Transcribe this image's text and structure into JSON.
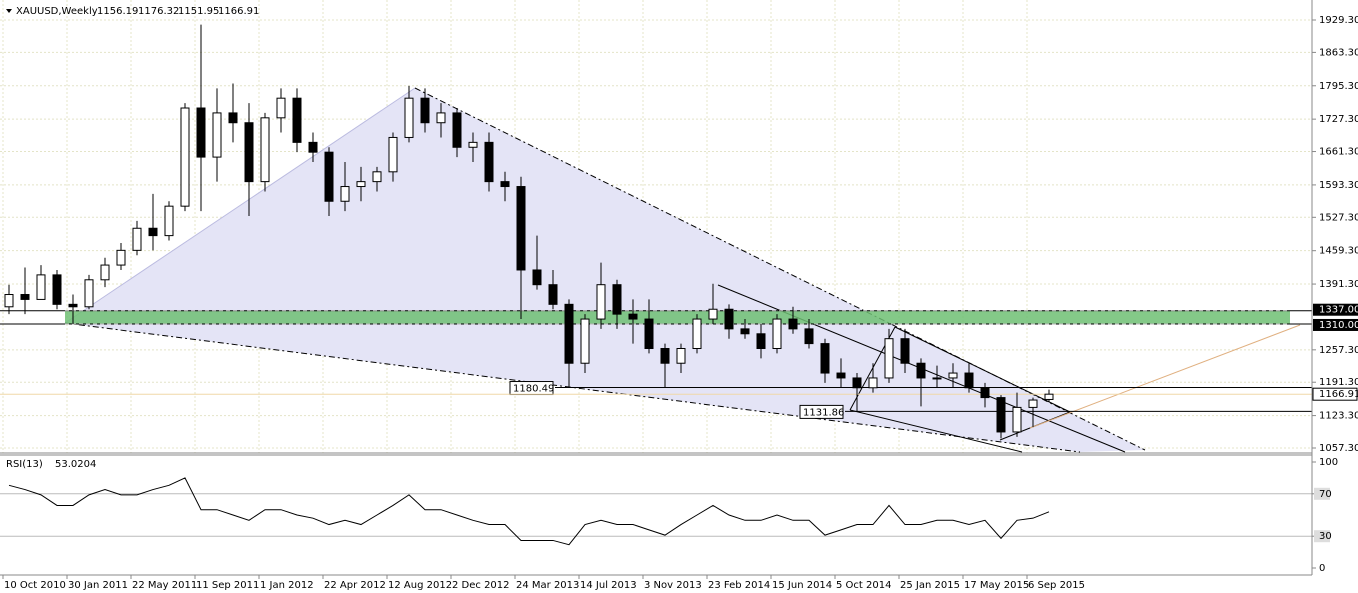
{
  "chart_data": {
    "type": "candlestick",
    "symbol": "XAUUSD,Weekly",
    "up_color": "#ffffff",
    "down_color": "#000000",
    "grid": true,
    "xlim": [
      -0.75,
      327.25
    ],
    "xticks": [
      {
        "value": 0,
        "label": "10 Oct 2010"
      },
      {
        "value": 16,
        "label": "30 Jan 2011"
      },
      {
        "value": 32,
        "label": "22 May 2011"
      },
      {
        "value": 48,
        "label": "11 Sep 2011"
      },
      {
        "value": 64,
        "label": "1 Jan 2012"
      },
      {
        "value": 80,
        "label": "22 Apr 2012"
      },
      {
        "value": 96,
        "label": "12 Aug 2012"
      },
      {
        "value": 112,
        "label": "2 Dec 2012"
      },
      {
        "value": 128,
        "label": "24 Mar 2013"
      },
      {
        "value": 144,
        "label": "14 Jul 2013"
      },
      {
        "value": 160,
        "label": "3 Nov 2013"
      },
      {
        "value": 176,
        "label": "23 Feb 2014"
      },
      {
        "value": 192,
        "label": "15 Jun 2014"
      },
      {
        "value": 208,
        "label": "5 Oct 2014"
      },
      {
        "value": 224,
        "label": "25 Jan 2015"
      },
      {
        "value": 240,
        "label": "17 May 2015"
      },
      {
        "value": 256,
        "label": "6 Sep 2015"
      }
    ],
    "ylim": [
      1047.1,
      1970.05
    ],
    "yticks": [
      {
        "value": 1929.3,
        "label": "1929.30"
      },
      {
        "value": 1863.3,
        "label": "1863.30"
      },
      {
        "value": 1795.3,
        "label": "1795.30"
      },
      {
        "value": 1727.3,
        "label": "1727.30"
      },
      {
        "value": 1661.3,
        "label": "1661.30"
      },
      {
        "value": 1593.3,
        "label": "1593.30"
      },
      {
        "value": 1527.3,
        "label": "1527.30"
      },
      {
        "value": 1459.3,
        "label": "1459.30"
      },
      {
        "value": 1391.3,
        "label": "1391.30"
      },
      {
        "value": 1257.3,
        "label": "1257.30"
      },
      {
        "value": 1191.3,
        "label": "1191.30"
      },
      {
        "value": 1123.3,
        "label": "1123.30"
      },
      {
        "value": 1057.3,
        "label": "1057.30"
      }
    ],
    "x": [
      1.5,
      5.5,
      9.5,
      13.5,
      17.5,
      21.5,
      25.5,
      29.5,
      33.5,
      37.5,
      41.5,
      45.5,
      49.5,
      53.5,
      57.5,
      61.5,
      65.5,
      69.5,
      73.5,
      77.5,
      81.5,
      85.5,
      89.5,
      93.5,
      97.5,
      101.5,
      105.5,
      109.5,
      113.5,
      117.5,
      121.5,
      125.5,
      129.5,
      133.5,
      137.5,
      141.5,
      145.5,
      149.5,
      153.5,
      157.5,
      161.5,
      165.5,
      169.5,
      173.5,
      177.5,
      181.5,
      185.5,
      189.5,
      193.5,
      197.5,
      201.5,
      205.5,
      209.5,
      213.5,
      217.5,
      221.5,
      225.5,
      229.5,
      233.5,
      237.5,
      241.5,
      245.5,
      249.5,
      253.5,
      257.5,
      261.5
    ],
    "open": [
      1345,
      1370,
      1360,
      1410,
      1350,
      1345,
      1400,
      1430,
      1460,
      1505,
      1490,
      1550,
      1750,
      1650,
      1740,
      1720,
      1600,
      1730,
      1770,
      1680,
      1660,
      1560,
      1590,
      1600,
      1620,
      1690,
      1770,
      1720,
      1740,
      1670,
      1680,
      1600,
      1590,
      1420,
      1390,
      1350,
      1230,
      1320,
      1390,
      1330,
      1320,
      1260,
      1230,
      1260,
      1320,
      1340,
      1300,
      1290,
      1260,
      1320,
      1300,
      1270,
      1210,
      1200,
      1180,
      1200,
      1280,
      1230,
      1200,
      1200,
      1210,
      1180,
      1160,
      1090,
      1140,
      1156.19
    ],
    "high": [
      1390,
      1425,
      1430,
      1420,
      1370,
      1410,
      1445,
      1475,
      1520,
      1575,
      1560,
      1760,
      1920,
      1790,
      1800,
      1760,
      1740,
      1790,
      1790,
      1700,
      1670,
      1640,
      1630,
      1630,
      1700,
      1795,
      1790,
      1760,
      1750,
      1700,
      1700,
      1620,
      1610,
      1490,
      1420,
      1360,
      1330,
      1435,
      1400,
      1360,
      1360,
      1270,
      1270,
      1330,
      1392,
      1350,
      1320,
      1310,
      1330,
      1345,
      1320,
      1280,
      1240,
      1210,
      1230,
      1300,
      1300,
      1240,
      1225,
      1230,
      1230,
      1190,
      1165,
      1170,
      1160,
      1176.32
    ],
    "low": [
      1330,
      1330,
      1360,
      1340,
      1310,
      1340,
      1385,
      1420,
      1450,
      1460,
      1480,
      1540,
      1540,
      1600,
      1680,
      1530,
      1580,
      1700,
      1660,
      1640,
      1530,
      1540,
      1560,
      1580,
      1600,
      1680,
      1700,
      1690,
      1650,
      1640,
      1580,
      1560,
      1320,
      1380,
      1340,
      1180,
      1210,
      1300,
      1300,
      1270,
      1250,
      1180,
      1210,
      1250,
      1310,
      1280,
      1280,
      1240,
      1250,
      1290,
      1260,
      1190,
      1180,
      1131,
      1170,
      1190,
      1210,
      1142,
      1180,
      1180,
      1170,
      1140,
      1077,
      1080,
      1100,
      1151.95
    ],
    "close": [
      1370,
      1360,
      1410,
      1350,
      1345,
      1400,
      1430,
      1460,
      1505,
      1490,
      1550,
      1750,
      1650,
      1740,
      1720,
      1600,
      1730,
      1770,
      1680,
      1660,
      1560,
      1590,
      1600,
      1620,
      1690,
      1770,
      1720,
      1740,
      1670,
      1680,
      1600,
      1590,
      1420,
      1390,
      1350,
      1230,
      1320,
      1390,
      1330,
      1320,
      1260,
      1230,
      1260,
      1320,
      1340,
      1300,
      1290,
      1260,
      1320,
      1300,
      1270,
      1210,
      1200,
      1180,
      1200,
      1280,
      1230,
      1200,
      1200,
      1210,
      1180,
      1160,
      1090,
      1140,
      1155,
      1166.91
    ],
    "levels": [
      {
        "value": 1337,
        "label": "1337.00"
      },
      {
        "value": 1310,
        "label": "1310.00"
      }
    ],
    "zone_color": "#6fbf73",
    "annotations": [
      1180.49,
      1131.86
    ],
    "indicator": {
      "type": "line",
      "name": "RSI(13)",
      "color": "#000000",
      "ylim": [
        -6.6,
        106.6
      ],
      "yticks": [
        100,
        70,
        30,
        0
      ],
      "values": [
        78,
        74,
        69,
        59,
        59,
        69,
        74,
        69,
        69,
        74,
        78,
        85,
        55,
        55,
        50,
        45,
        55,
        55,
        50,
        47,
        41,
        45,
        41,
        50,
        59,
        69,
        55,
        55,
        50,
        45,
        41,
        41,
        26,
        26,
        26,
        22,
        41,
        45,
        41,
        41,
        36,
        31,
        41,
        50,
        59,
        50,
        45,
        45,
        50,
        45,
        45,
        31,
        36,
        41,
        41,
        59,
        41,
        41,
        45,
        45,
        41,
        45,
        28,
        45,
        47,
        53.0204
      ]
    }
  }
}
